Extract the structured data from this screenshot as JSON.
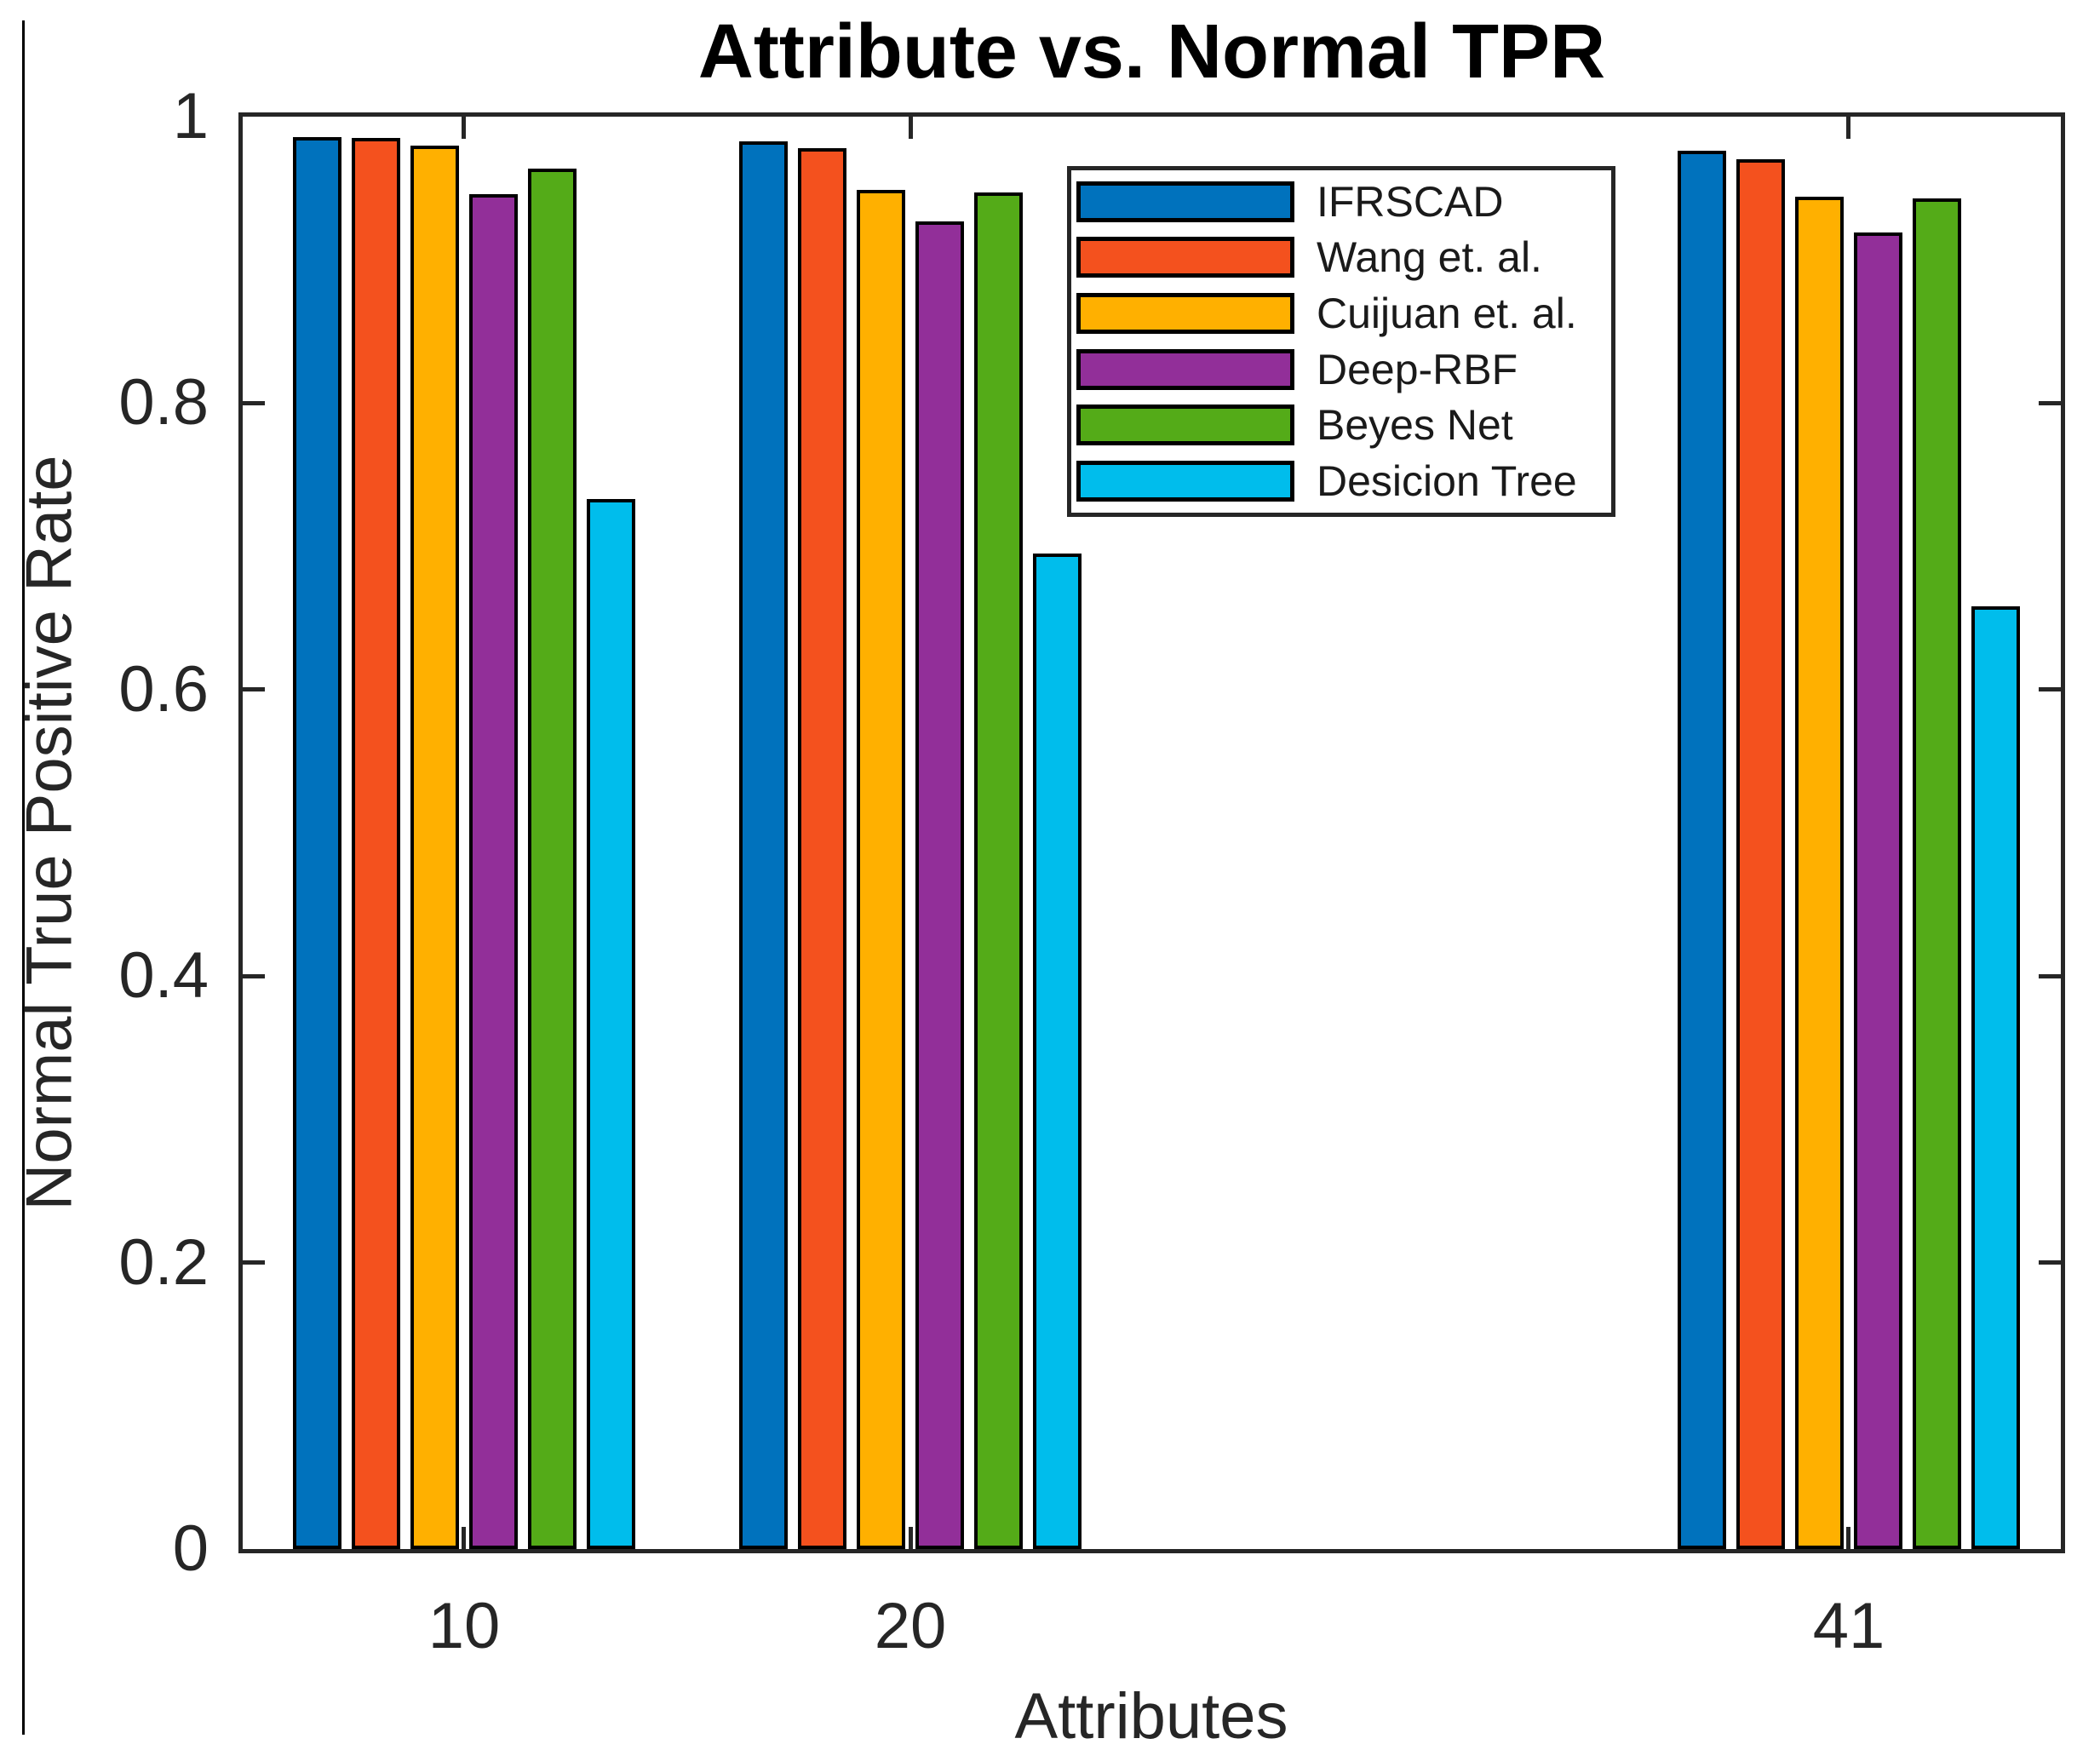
{
  "figure": {
    "title": "Attribute vs. Normal TPR",
    "x_axis_label": "Attributes",
    "y_axis_label": "Normal True Positive Rate"
  },
  "chart_data": {
    "type": "bar",
    "title": "Attribute vs. Normal TPR",
    "xlabel": "Attributes",
    "ylabel": "Normal True Positive Rate",
    "categories": [
      "10",
      "20",
      "41"
    ],
    "category_x_values": [
      10,
      20,
      41
    ],
    "xlim": [
      5.05,
      45.75
    ],
    "ylim": [
      0,
      1
    ],
    "yticks": [
      0,
      0.2,
      0.4,
      0.6,
      0.8,
      1
    ],
    "ytick_labels": [
      "0",
      "0.2",
      "0.4",
      "0.6",
      "0.8",
      "1"
    ],
    "grid": false,
    "legend_position": "inside-upper-middle",
    "bar_edge_color": "#000000",
    "axis_color": "#262626",
    "series": [
      {
        "name": "IFRSCAD",
        "color": "#0072BD",
        "values": [
          0.986,
          0.983,
          0.976
        ]
      },
      {
        "name": "Wang et. al.",
        "color": "#F4511E",
        "values": [
          0.985,
          0.978,
          0.97
        ]
      },
      {
        "name": "Cuijuan et. al.",
        "color": "#FFB000",
        "values": [
          0.98,
          0.949,
          0.944
        ]
      },
      {
        "name": "Deep-RBF",
        "color": "#922F99",
        "values": [
          0.946,
          0.927,
          0.919
        ]
      },
      {
        "name": "Beyes Net",
        "color": "#54AB18",
        "values": [
          0.964,
          0.947,
          0.943
        ]
      },
      {
        "name": "Desicion Tree",
        "color": "#00BDEC",
        "values": [
          0.733,
          0.695,
          0.658
        ]
      }
    ]
  }
}
